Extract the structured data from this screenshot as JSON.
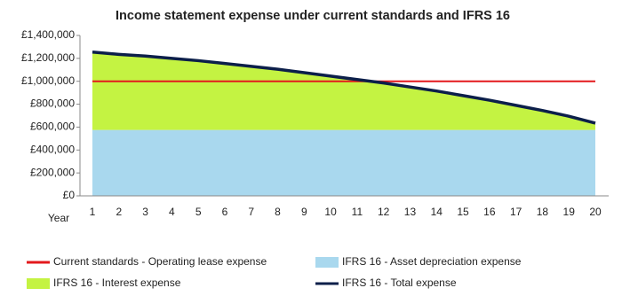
{
  "chart_data": {
    "type": "area",
    "title": "Income statement expense under current standards and IFRS 16",
    "x_label": "Year",
    "categories": [
      "1",
      "2",
      "3",
      "4",
      "5",
      "6",
      "7",
      "8",
      "9",
      "10",
      "11",
      "12",
      "13",
      "14",
      "15",
      "16",
      "17",
      "18",
      "19",
      "20"
    ],
    "stacked": true,
    "grid": false,
    "legend": "bottom",
    "ylim": [
      0,
      1400000
    ],
    "yticks": [
      {
        "value": 0,
        "label": "£0"
      },
      {
        "value": 200000,
        "label": "£200,000"
      },
      {
        "value": 400000,
        "label": "£400,000"
      },
      {
        "value": 600000,
        "label": "£600,000"
      },
      {
        "value": 800000,
        "label": "£800,000"
      },
      {
        "value": 1000000,
        "label": "£1,000,000"
      },
      {
        "value": 1200000,
        "label": "£1,200,000"
      },
      {
        "value": 1400000,
        "label": "£1,400,000"
      }
    ],
    "series": [
      {
        "name": "Current standards - Operating lease expense",
        "type": "line",
        "color": "#e3191c",
        "values": [
          1000000,
          1000000,
          1000000,
          1000000,
          1000000,
          1000000,
          1000000,
          1000000,
          1000000,
          1000000,
          1000000,
          1000000,
          1000000,
          1000000,
          1000000,
          1000000,
          1000000,
          1000000,
          1000000,
          1000000
        ]
      },
      {
        "name": "IFRS 16 - Asset depreciation expense",
        "type": "area",
        "color": "#a9d8ee",
        "values": [
          575000,
          575000,
          575000,
          575000,
          575000,
          575000,
          575000,
          575000,
          575000,
          575000,
          575000,
          575000,
          575000,
          575000,
          575000,
          575000,
          575000,
          575000,
          575000,
          575000
        ]
      },
      {
        "name": "IFRS 16 - Interest expense",
        "type": "area",
        "color": "#c4f342",
        "values": [
          680000,
          660000,
          645000,
          625000,
          605000,
          580000,
          555000,
          530000,
          500000,
          470000,
          440000,
          410000,
          375000,
          340000,
          300000,
          260000,
          215000,
          170000,
          120000,
          60000
        ]
      },
      {
        "name": "IFRS 16 - Total expense",
        "type": "line",
        "color": "#0c1f4a",
        "values": [
          1255000,
          1235000,
          1220000,
          1200000,
          1180000,
          1155000,
          1130000,
          1105000,
          1075000,
          1045000,
          1015000,
          985000,
          950000,
          915000,
          875000,
          835000,
          790000,
          745000,
          695000,
          635000
        ]
      }
    ]
  }
}
